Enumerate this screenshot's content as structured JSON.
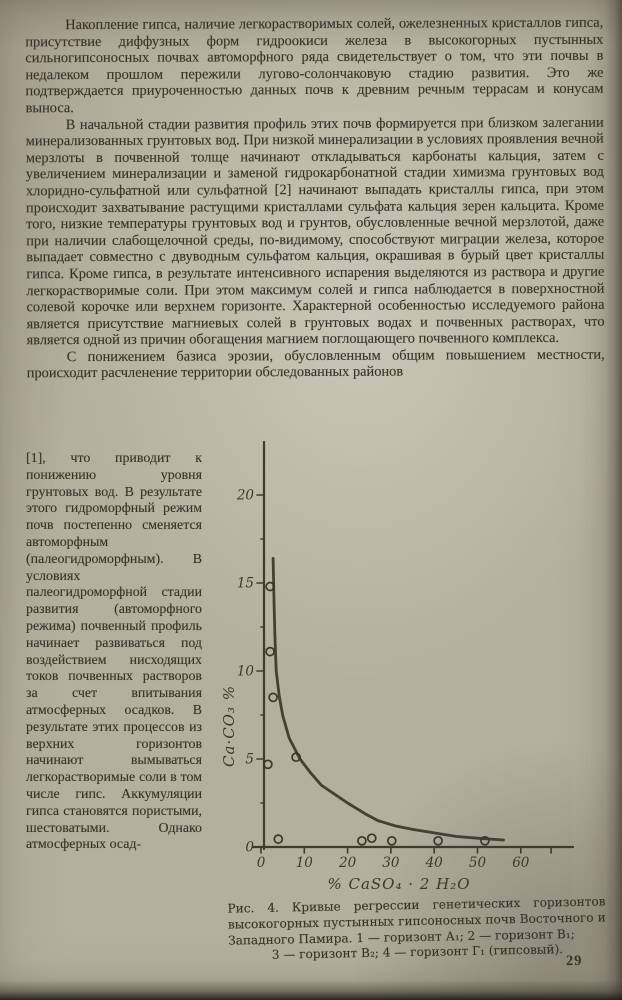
{
  "document": {
    "paragraphs": {
      "p1": "Накопление гипса, наличие легкорастворимых солей, ожелезненных кристаллов гипса, присутствие диффузных форм гидроокиси железа в высокогорных пустынных сильногипсоносных почвах автоморфного ряда свидетельствует о том, что эти почвы в недалеком прошлом пережили лугово-солончаковую стадию развития. Это же подтверждается приуроченностью данных почв к древним речным террасам и конусам выноса.",
      "p2": "В начальной стадии развития профиль этих почв формируется при близком залегании минерализованных грунтовых вод. При низкой минерализации в условиях проявления вечной мерзлоты в почвенной толще начинают откладываться карбонаты кальция, затем с увеличением минерализации и заменой гидрокарбонатной стадии химизма грунтовых вод хлоридно-сульфатной или сульфатной [2] начинают выпадать кристаллы гипса, при этом происходит захватывание растущими кристаллами сульфата кальция зерен кальцита. Кроме того, низкие температуры грунтовых вод и грунтов, обусловленные вечной мерзлотой, даже при наличии слабощелочной среды, по-видимому, способствуют миграции железа, которое выпадает совместно с двуводным сульфатом кальция, окрашивая в бурый цвет кристаллы гипса. Кроме гипса, в результате интенсивного испарения выделяются из раствора и другие легкорастворимые соли. При этом максимум солей и гипса наблюдается в поверхностной солевой корочке или верхнем горизонте. Характерной особенностью исследуемого района является присутствие магниевых солей в грунтовых водах и почвенных растворах, что является одной из причин обогащения магнием поглощающего почвенного комплекса.",
      "p3_intro": "С понижением базиса эрозии, обусловленным общим повышением местности, происходит расчленение территории обследованных районов"
    },
    "left_column": "[1], что приводит к понижению уровня грунтовых вод. В результате этого гидроморфный режим почв постепенно сменяется автоморфным (палеогидроморфным). В условиях палеогидроморфной стадии развития (автоморфного режима) почвенный профиль начинает развиваться под воздействием нисходящих токов почвенных растворов за счет впитывания атмосферных осадков. В результате этих процессов из верхних горизонтов начинают вымываться легкорастворимые соли в том числе гипс. Аккумуляции гипса становятся пористыми, шестоватыми. Однако атмосферных осад-",
    "figure": {
      "caption_main": "Рис. 4. Кривые регрессии генетических горизонтов высокогорных пустынных гипсоносных почв Восточного и Западного Памира. 1 — горизонт А₁; 2 — горизонт В₁;",
      "caption_last": "3 — горизонт В₂; 4 — горизонт Г₁ (гипсовый)."
    },
    "page_number": "29"
  },
  "chart_data": {
    "type": "scatter",
    "title": "",
    "xlabel": "%   CaSO₄ · 2 H₂O",
    "ylabel": "Ca·CO₃ %",
    "xlim": [
      0,
      72
    ],
    "ylim": [
      0,
      23
    ],
    "x_ticks": [
      0,
      10,
      20,
      30,
      40,
      50,
      60
    ],
    "x_extra_tick": 67,
    "y_ticks": [
      0,
      5,
      10,
      15,
      20
    ],
    "y_minor_ticks": [
      2.5,
      7.5,
      12.5,
      17.5
    ],
    "grid": "off",
    "legend": "none",
    "series": [
      {
        "name": "regression-curve",
        "type": "line",
        "points": [
          [
            2.8,
            16.4
          ],
          [
            3.0,
            14.0
          ],
          [
            3.2,
            12.0
          ],
          [
            3.5,
            10.0
          ],
          [
            4.2,
            8.6
          ],
          [
            5.0,
            7.5
          ],
          [
            6.5,
            6.2
          ],
          [
            9.0,
            5.0
          ],
          [
            11.5,
            4.2
          ],
          [
            14.0,
            3.5
          ],
          [
            17.0,
            3.0
          ],
          [
            20.0,
            2.5
          ],
          [
            24.0,
            1.9
          ],
          [
            27.0,
            1.5
          ],
          [
            31.0,
            1.2
          ],
          [
            35.0,
            1.0
          ],
          [
            40.0,
            0.8
          ],
          [
            45.0,
            0.6
          ],
          [
            50.0,
            0.5
          ],
          [
            56.0,
            0.4
          ]
        ]
      },
      {
        "name": "observations",
        "type": "scatter",
        "points": [
          [
            2.1,
            14.8
          ],
          [
            2.1,
            11.1
          ],
          [
            2.8,
            8.5
          ],
          [
            1.6,
            4.7
          ],
          [
            8.1,
            5.1
          ],
          [
            4.0,
            0.45
          ],
          [
            23.3,
            0.35
          ],
          [
            25.6,
            0.5
          ],
          [
            30.2,
            0.35
          ],
          [
            40.9,
            0.35
          ],
          [
            51.7,
            0.35
          ]
        ]
      }
    ]
  }
}
